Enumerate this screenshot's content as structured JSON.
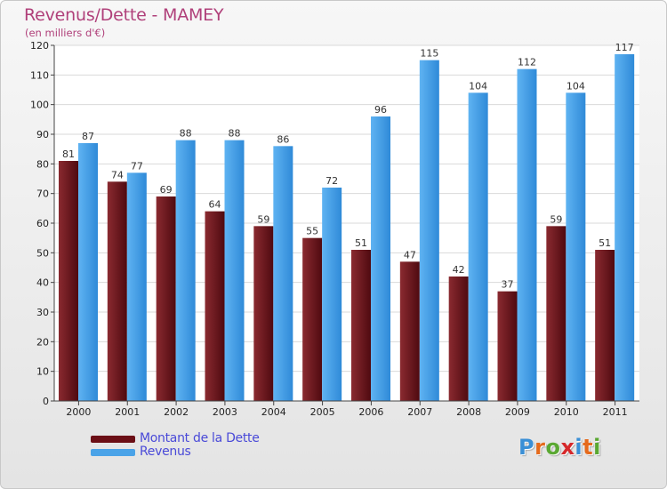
{
  "header": {
    "title": "Revenus/Dette - MAMEY",
    "subtitle": "(en milliers d'€)"
  },
  "legend": {
    "items": [
      {
        "label": "Montant de la Dette",
        "color": "#6b0f16"
      },
      {
        "label": "Revenus",
        "color": "#4aa3e8"
      }
    ]
  },
  "logo": {
    "text": "Proxiti",
    "letter_colors": [
      "#3a8fd6",
      "#e56a1c",
      "#5aa832",
      "#d6282a",
      "#3a8fd6",
      "#e56a1c",
      "#5aa832"
    ]
  },
  "chart_data": {
    "type": "bar",
    "categories": [
      "2000",
      "2001",
      "2002",
      "2003",
      "2004",
      "2005",
      "2006",
      "2007",
      "2008",
      "2009",
      "2010",
      "2011"
    ],
    "series": [
      {
        "name": "Montant de la Dette",
        "values": [
          81,
          74,
          69,
          64,
          59,
          55,
          51,
          47,
          42,
          37,
          59,
          51
        ],
        "color": "#6b0f16"
      },
      {
        "name": "Revenus",
        "values": [
          87,
          77,
          88,
          88,
          86,
          72,
          96,
          115,
          104,
          112,
          104,
          117
        ],
        "color": "#4aa3e8"
      }
    ],
    "ylim": [
      0,
      120
    ],
    "yticks": [
      0,
      10,
      20,
      30,
      40,
      50,
      60,
      70,
      80,
      90,
      100,
      110,
      120
    ],
    "grid": true,
    "legend_position": "bottom-left"
  }
}
